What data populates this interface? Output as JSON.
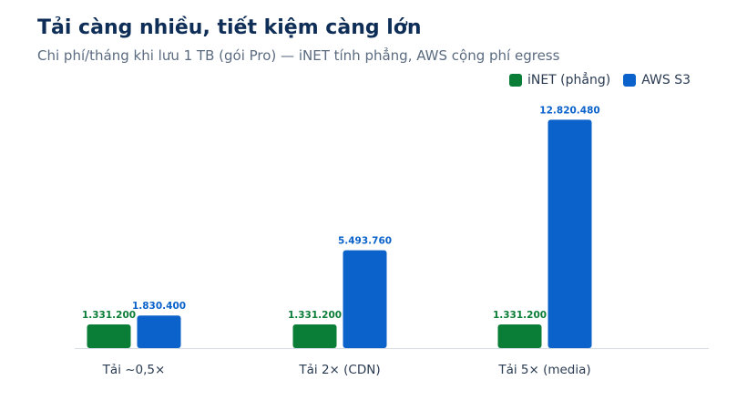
{
  "title": "Tải càng nhiều, tiết kiệm càng lớn",
  "subtitle": "Chi phí/tháng khi lưu 1 TB (gói Pro) — iNET tính phẳng, AWS cộng phí egress",
  "colors": {
    "inet": "#0a7d36",
    "aws": "#0a62ca",
    "title": "#0f2e57",
    "baseline": "#d5dbe7",
    "tick": "#2a3b52"
  },
  "chart_data": {
    "type": "bar",
    "categories": [
      "Tải ~0,5×",
      "Tải 2× (CDN)",
      "Tải 5× (media)"
    ],
    "series": [
      {
        "name": "iNET (phẳng)",
        "values": [
          1331200,
          1331200,
          1331200
        ],
        "labels": [
          "1.331.200",
          "1.331.200",
          "1.331.200"
        ],
        "color": "#0a7d36"
      },
      {
        "name": "AWS S3",
        "values": [
          1830400,
          5493760,
          12820480
        ],
        "labels": [
          "1.830.400",
          "5.493.760",
          "12.820.480"
        ],
        "color": "#0a62ca"
      }
    ],
    "ylim": [
      0,
      13400000
    ],
    "grid": false,
    "legend": "top-right",
    "xlabel": "",
    "ylabel": ""
  }
}
